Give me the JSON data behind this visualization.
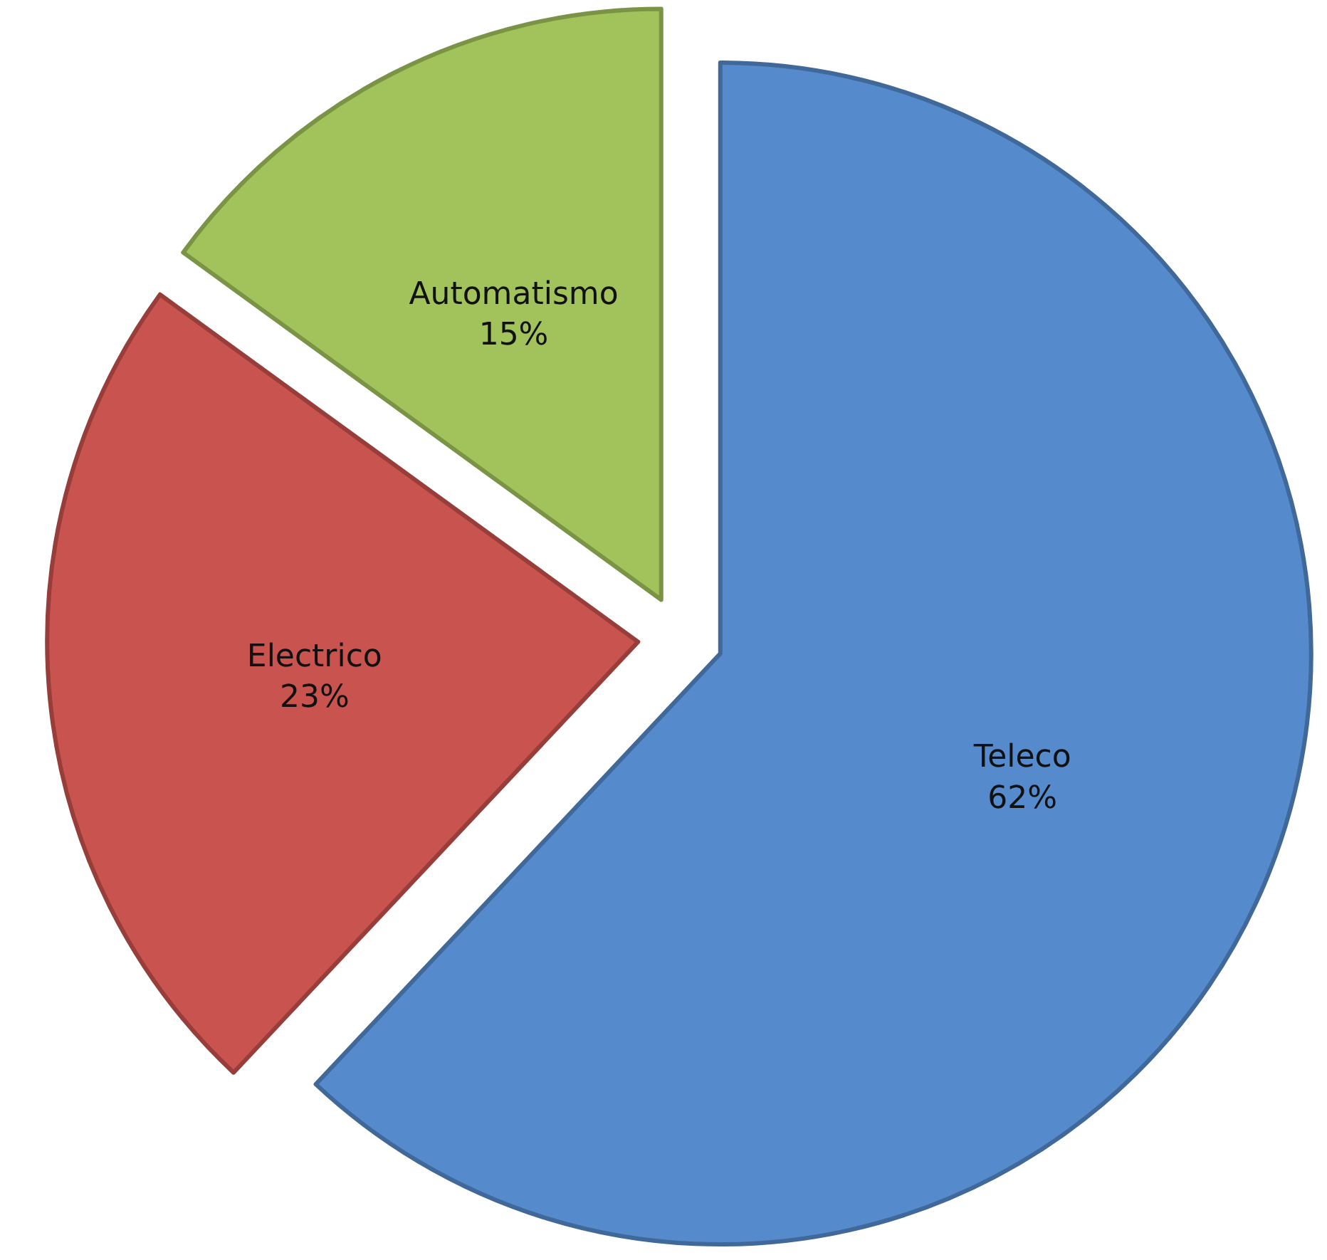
{
  "chart_data": {
    "type": "pie",
    "categories": [
      "Teleco",
      "Electrico",
      "Automatismo"
    ],
    "values": [
      62,
      23,
      15
    ],
    "colors": [
      "#558bcc",
      "#c9534f",
      "#a2c35c"
    ],
    "value_labels": [
      "62%",
      "23%",
      "15%"
    ]
  }
}
